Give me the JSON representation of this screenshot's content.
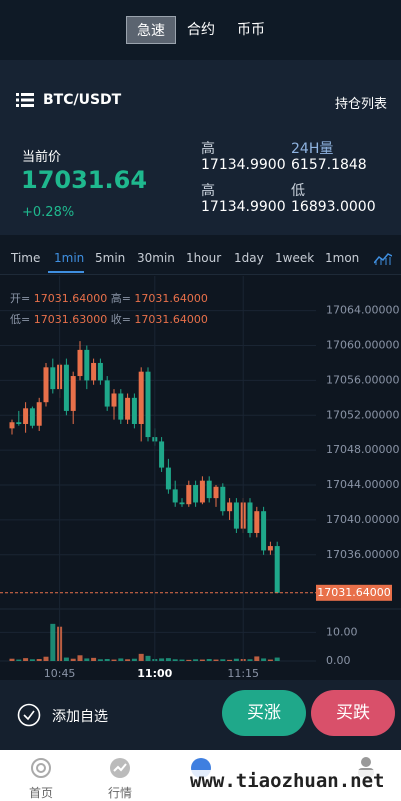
{
  "tabs": [
    "急速",
    "合约",
    "币币"
  ],
  "header": {
    "pair": "BTC/USDT",
    "positions": "持仓列表"
  },
  "ticker": {
    "label": "当前价",
    "price": "17031.64",
    "change": "+0.28%",
    "stats": [
      {
        "label": "高",
        "value": "17134.9900"
      },
      {
        "label": "24H量",
        "value": "6157.1848"
      },
      {
        "label": "高",
        "value": "17134.9900"
      },
      {
        "label": "低",
        "value": "16893.0000"
      }
    ]
  },
  "periods": [
    "Time",
    "1min",
    "5min",
    "30min",
    "1hour",
    "1day",
    "1week",
    "1mon"
  ],
  "kline_legend": [
    {
      "label": "开=",
      "value": "17031.64000"
    },
    {
      "label": "高=",
      "value": "17031.64000"
    },
    {
      "label": "低=",
      "value": "17031.63000"
    },
    {
      "label": "收=",
      "value": "17031.64000"
    }
  ],
  "chart_data": {
    "type": "candlestick",
    "categories": [
      null,
      null,
      null,
      null,
      null,
      null,
      null,
      "10:45",
      null,
      null,
      null,
      null,
      null,
      null,
      null,
      null,
      null,
      null,
      null,
      null,
      null,
      "11:00",
      null,
      null,
      null,
      null,
      null,
      null,
      null,
      null,
      null,
      null,
      null,
      null,
      "11:15",
      null,
      null,
      null,
      null,
      null
    ],
    "ohlc": [
      [
        17050.5,
        17051.5,
        17049.8,
        17051.2
      ],
      [
        17051.2,
        17052.5,
        17050.8,
        17051.0
      ],
      [
        17051.0,
        17053.5,
        17050.0,
        17052.8
      ],
      [
        17052.8,
        17053.0,
        17050.5,
        17050.8
      ],
      [
        17050.8,
        17054.0,
        17050.2,
        17053.5
      ],
      [
        17053.5,
        17058.0,
        17053.0,
        17057.5
      ],
      [
        17057.5,
        17058.5,
        17054.5,
        17055.0
      ],
      [
        17055.0,
        17058.0,
        17054.0,
        17057.8
      ],
      [
        17057.8,
        17058.5,
        17052.0,
        17052.5
      ],
      [
        17052.5,
        17057.0,
        17051.0,
        17056.5
      ],
      [
        17056.5,
        17060.5,
        17056.0,
        17059.5
      ],
      [
        17059.5,
        17060.0,
        17055.0,
        17056.0
      ],
      [
        17056.0,
        17058.5,
        17055.5,
        17058.0
      ],
      [
        17058.0,
        17058.5,
        17055.5,
        17056.0
      ],
      [
        17056.0,
        17056.5,
        17052.5,
        17053.0
      ],
      [
        17053.0,
        17055.0,
        17051.5,
        17054.5
      ],
      [
        17054.5,
        17055.0,
        17051.0,
        17051.5
      ],
      [
        17051.5,
        17054.5,
        17051.0,
        17054.0
      ],
      [
        17054.0,
        17054.5,
        17050.5,
        17051.0
      ],
      [
        17051.0,
        17057.5,
        17049.0,
        17057.0
      ],
      [
        17057.0,
        17057.5,
        17049.0,
        17049.5
      ],
      [
        17049.5,
        17050.5,
        17048.5,
        17049.0
      ],
      [
        17049.0,
        17049.5,
        17045.5,
        17046.0
      ],
      [
        17046.0,
        17047.0,
        17043.0,
        17043.5
      ],
      [
        17043.5,
        17044.5,
        17041.5,
        17042.0
      ],
      [
        17042.0,
        17042.5,
        17041.5,
        17041.8
      ],
      [
        17041.8,
        17044.5,
        17041.5,
        17044.0
      ],
      [
        17044.0,
        17044.5,
        17041.5,
        17042.0
      ],
      [
        17042.0,
        17045.0,
        17041.8,
        17044.5
      ],
      [
        17044.5,
        17045.0,
        17042.0,
        17042.5
      ],
      [
        17042.5,
        17044.0,
        17041.5,
        17043.8
      ],
      [
        17043.8,
        17044.2,
        17040.5,
        17041.0
      ],
      [
        17041.0,
        17042.5,
        17040.0,
        17042.0
      ],
      [
        17042.0,
        17042.5,
        17038.5,
        17039.0
      ],
      [
        17039.0,
        17042.5,
        17038.5,
        17042.0
      ],
      [
        17042.0,
        17042.5,
        17038.0,
        17038.5
      ],
      [
        17038.5,
        17041.5,
        17038.0,
        17041.0
      ],
      [
        17041.0,
        17041.5,
        17036.0,
        17036.5
      ],
      [
        17036.5,
        17037.5,
        17036.0,
        17037.0
      ],
      [
        17037.0,
        17037.5,
        17031.6,
        17031.64
      ]
    ],
    "volume": [
      0.8,
      0.5,
      1.0,
      0.6,
      0.7,
      1.5,
      13,
      12,
      1.2,
      0.8,
      2.0,
      0.9,
      1.1,
      0.6,
      0.7,
      0.5,
      0.9,
      0.6,
      0.8,
      2.5,
      1.8,
      0.7,
      0.9,
      1.0,
      0.6,
      0.5,
      0.4,
      0.6,
      0.5,
      0.7,
      0.5,
      0.6,
      0.4,
      0.8,
      0.7,
      0.6,
      1.6,
      0.9,
      0.5,
      1.2
    ],
    "up_color": "#e8704a",
    "down_color": "#1fa88a",
    "ylim": [
      17030.7,
      17067.4
    ],
    "yticks": [
      {
        "value": 17036,
        "label": "17036.00000"
      },
      {
        "value": 17040,
        "label": "17040.00000"
      },
      {
        "value": 17044,
        "label": "17044.00000"
      },
      {
        "value": 17048,
        "label": "17048.00000"
      },
      {
        "value": 17052,
        "label": "17052.00000"
      },
      {
        "value": 17056,
        "label": "17056.00000"
      },
      {
        "value": 17060,
        "label": "17060.00000"
      },
      {
        "value": 17064,
        "label": "17064.00000"
      }
    ],
    "last_price": {
      "value": 17031.64,
      "label": "17031.64000"
    },
    "vlim": [
      0,
      14
    ],
    "vticks": [
      {
        "value": 0,
        "label": "0.00"
      },
      {
        "value": 10,
        "label": "10.00"
      }
    ],
    "grid": true
  },
  "actions": {
    "watch": "添加自选",
    "buy_up": "买涨",
    "buy_down": "买跌"
  },
  "nav": [
    "首页",
    "行情"
  ],
  "watermark": "www.tiaozhuan.net"
}
